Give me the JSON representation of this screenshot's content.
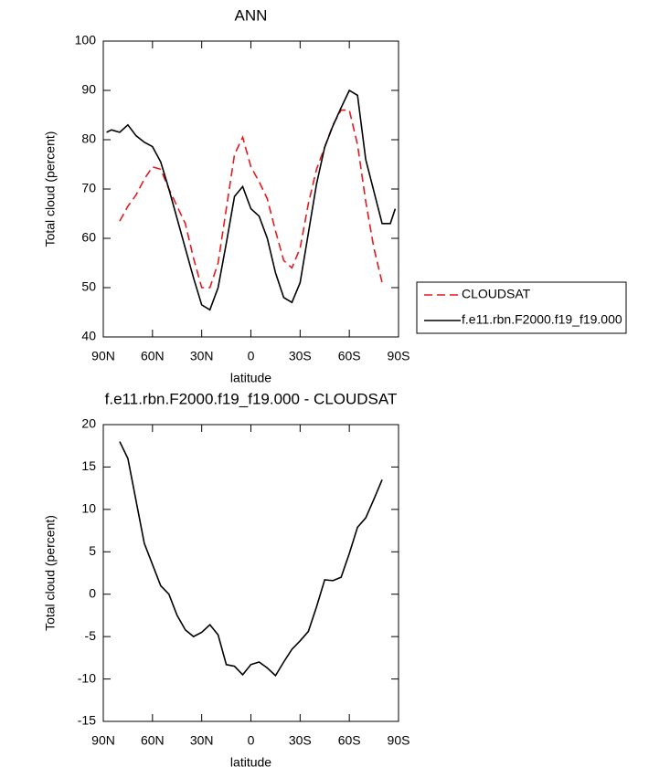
{
  "chart_data": [
    {
      "type": "line",
      "title": "ANN",
      "x_label": "latitude",
      "y_label": "Total cloud (percent)",
      "x": [
        88,
        85,
        80,
        75,
        70,
        65,
        60,
        55,
        50,
        45,
        40,
        35,
        30,
        25,
        20,
        15,
        10,
        5,
        0,
        -5,
        -10,
        -15,
        -20,
        -25,
        -30,
        -35,
        -40,
        -45,
        -50,
        -55,
        -60,
        -65,
        -70,
        -75,
        -80,
        -85,
        -88
      ],
      "series": [
        {
          "name": "CLOUDSAT",
          "color": "#e41a1c",
          "line_style": "dashed",
          "values": [
            null,
            null,
            63.5,
            66.5,
            68.8,
            72,
            74.5,
            74,
            70,
            66.5,
            63,
            56,
            50,
            50,
            55,
            66,
            77,
            80.5,
            74.5,
            71.5,
            68,
            61.5,
            55.5,
            54,
            58,
            67,
            74,
            78.5,
            83,
            86,
            86,
            79,
            67.5,
            58,
            51,
            null,
            null
          ]
        },
        {
          "name": "f.e11.rbn.F2000.f19_f19.000",
          "color": "#000000",
          "line_style": "solid",
          "values": [
            81.5,
            82,
            81.5,
            83,
            80.8,
            79.5,
            78.6,
            75.5,
            70,
            64,
            58,
            52,
            46.5,
            45.5,
            50,
            59,
            68.5,
            70.5,
            66,
            64.5,
            60,
            53,
            48,
            47,
            51,
            61,
            71,
            78.5,
            82.8,
            86.5,
            90,
            89,
            76,
            69.5,
            63,
            63,
            66
          ]
        }
      ],
      "xlim": [
        90,
        -90
      ],
      "xticks": [
        {
          "value": 90,
          "label": "90N"
        },
        {
          "value": 60,
          "label": "60N"
        },
        {
          "value": 30,
          "label": "30N"
        },
        0,
        {
          "value": -30,
          "label": "30S"
        },
        {
          "value": -60,
          "label": "60S"
        },
        {
          "value": -90,
          "label": "90S"
        }
      ],
      "ylim": [
        40,
        100
      ],
      "yticks": [
        40,
        50,
        60,
        70,
        80,
        90,
        100
      ],
      "legend": "right"
    },
    {
      "type": "line",
      "title": "f.e11.rbn.F2000.f19_f19.000 - CLOUDSAT",
      "x_label": "latitude",
      "y_label": "Total cloud (percent)",
      "x": [
        88,
        85,
        80,
        75,
        70,
        65,
        60,
        55,
        50,
        45,
        40,
        35,
        30,
        25,
        20,
        15,
        10,
        5,
        0,
        -5,
        -10,
        -15,
        -20,
        -25,
        -30,
        -35,
        -40,
        -45,
        -50,
        -55,
        -60,
        -65,
        -70,
        -75,
        -80,
        -85,
        -88
      ],
      "values": [
        null,
        null,
        18,
        16,
        11,
        6,
        3.5,
        1,
        0,
        -2.5,
        -4.2,
        -5,
        -4.5,
        -3.6,
        -4.8,
        -8.3,
        -8.5,
        -9.5,
        -8.3,
        -8,
        -8.7,
        -9.6,
        -8,
        -6.5,
        -5.5,
        -4.4,
        -1.5,
        1.7,
        1.6,
        2,
        4.8,
        7.9,
        9,
        11.2,
        13.5,
        null,
        null
      ],
      "color": "#000000",
      "line_style": "solid",
      "xlim": [
        90,
        -90
      ],
      "xticks": [
        {
          "value": 90,
          "label": "90N"
        },
        {
          "value": 60,
          "label": "60N"
        },
        {
          "value": 30,
          "label": "30N"
        },
        0,
        {
          "value": -30,
          "label": "30S"
        },
        {
          "value": -60,
          "label": "60S"
        },
        {
          "value": -90,
          "label": "90S"
        }
      ],
      "ylim": [
        -15,
        20
      ],
      "yticks": [
        -15,
        -10,
        -5,
        0,
        5,
        10,
        15,
        20
      ]
    }
  ]
}
